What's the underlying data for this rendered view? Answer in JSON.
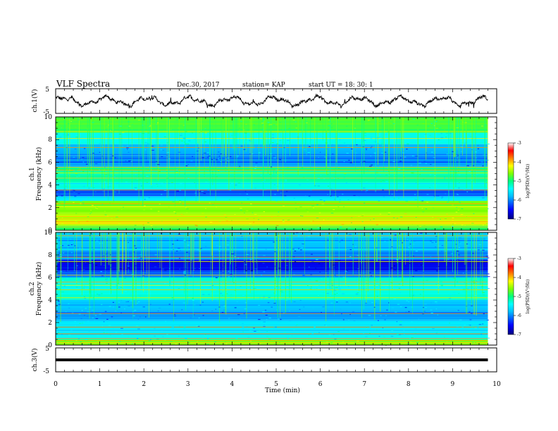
{
  "header": {
    "title": "VLF Spectra",
    "date": "Dec.30, 2017",
    "station": "station= KAP",
    "start": "start  UT =   18: 30: 1"
  },
  "colors": {
    "background": "#ffffff",
    "waveform": "#000000",
    "colormap": [
      "#00007f",
      "#0000ff",
      "#00bfff",
      "#00ffff",
      "#00ff7f",
      "#7fff00",
      "#ffff00",
      "#ff7f00",
      "#ff0000",
      "#ffffff"
    ]
  },
  "chart_data": [
    {
      "type": "line",
      "panel": "ch1-waveform",
      "ylabel": "ch.1(V)",
      "ylim": [
        -5,
        5
      ],
      "yticks": [
        "5",
        "-5"
      ],
      "xlim": [
        0,
        10
      ],
      "description_values": "noisy oscillating waveform between about -2.5 and 2.5 V"
    },
    {
      "type": "heatmap",
      "panel": "ch1-spectrogram",
      "ylabel_line1": "ch.1",
      "ylabel_line2": "Frequency (kHz)",
      "ylim": [
        0,
        10
      ],
      "yticks": [
        "0",
        "2",
        "4",
        "6",
        "8",
        "10"
      ],
      "xlim": [
        0,
        10
      ],
      "data_end_min": 9.8,
      "colorbar": {
        "label": "log(PSD)(V²/Hz)",
        "range": [
          -7,
          -3
        ],
        "ticks": [
          "-3",
          "-4",
          "-5",
          "-6",
          "-7"
        ]
      },
      "bands": [
        {
          "f0": 0.0,
          "f1": 0.4,
          "level": 0.55
        },
        {
          "f0": 0.4,
          "f1": 0.9,
          "level": 0.72
        },
        {
          "f0": 0.9,
          "f1": 1.5,
          "level": 0.66
        },
        {
          "f0": 1.5,
          "f1": 2.6,
          "level": 0.62
        },
        {
          "f0": 2.6,
          "f1": 3.0,
          "level": 0.34
        },
        {
          "f0": 3.0,
          "f1": 3.6,
          "level": 0.2
        },
        {
          "f0": 3.6,
          "f1": 4.2,
          "level": 0.38
        },
        {
          "f0": 4.2,
          "f1": 5.0,
          "level": 0.45
        },
        {
          "f0": 5.0,
          "f1": 5.6,
          "level": 0.5
        },
        {
          "f0": 5.6,
          "f1": 6.6,
          "level": 0.22
        },
        {
          "f0": 6.6,
          "f1": 7.6,
          "level": 0.24
        },
        {
          "f0": 7.6,
          "f1": 8.6,
          "level": 0.4
        },
        {
          "f0": 8.6,
          "f1": 10.0,
          "level": 0.56
        }
      ],
      "lines_khz": [
        0.3,
        0.6,
        0.75,
        1.0,
        1.2,
        2.1,
        2.35,
        3.55,
        4.6,
        5.05,
        5.3,
        5.55,
        7.3,
        8.1,
        8.7
      ]
    },
    {
      "type": "heatmap",
      "panel": "ch2-spectrogram",
      "ylabel_line1": "ch.2",
      "ylabel_line2": "Frequency (kHz)",
      "ylim": [
        0,
        10
      ],
      "yticks": [
        "0",
        "2",
        "4",
        "6",
        "8",
        "10"
      ],
      "xlim": [
        0,
        10
      ],
      "data_end_min": 9.8,
      "colorbar": {
        "label": "log(PSD)(V²/Hz)",
        "range": [
          -7,
          -3
        ],
        "ticks": [
          "-3",
          "-4",
          "-5",
          "-6",
          "-7"
        ]
      },
      "bands": [
        {
          "f0": 0.0,
          "f1": 0.5,
          "level": 0.6
        },
        {
          "f0": 0.5,
          "f1": 1.2,
          "level": 0.36
        },
        {
          "f0": 1.2,
          "f1": 2.2,
          "level": 0.32
        },
        {
          "f0": 2.2,
          "f1": 3.1,
          "level": 0.22
        },
        {
          "f0": 3.1,
          "f1": 4.0,
          "level": 0.26
        },
        {
          "f0": 4.0,
          "f1": 6.0,
          "level": 0.4
        },
        {
          "f0": 6.0,
          "f1": 6.6,
          "level": 0.22
        },
        {
          "f0": 6.6,
          "f1": 7.6,
          "level": 0.1
        },
        {
          "f0": 7.6,
          "f1": 8.4,
          "level": 0.22
        },
        {
          "f0": 8.4,
          "f1": 10.0,
          "level": 0.26
        }
      ],
      "lines_khz": [
        0.2,
        0.4,
        0.6,
        1.0,
        1.6,
        2.8,
        4.2,
        4.9,
        5.3,
        5.6,
        6.2,
        7.4,
        7.8,
        9.7
      ]
    },
    {
      "type": "line",
      "panel": "ch3-waveform",
      "ylabel": "ch.3(V)",
      "ylim": [
        -5,
        5
      ],
      "yticks": [
        "5",
        "-5"
      ],
      "xlim": [
        0,
        10
      ],
      "xlabel": "Time (min)",
      "xticks": [
        "0",
        "1",
        "2",
        "3",
        "4",
        "5",
        "6",
        "7",
        "8",
        "9",
        "10"
      ],
      "constant_value_v": 0.0
    }
  ]
}
